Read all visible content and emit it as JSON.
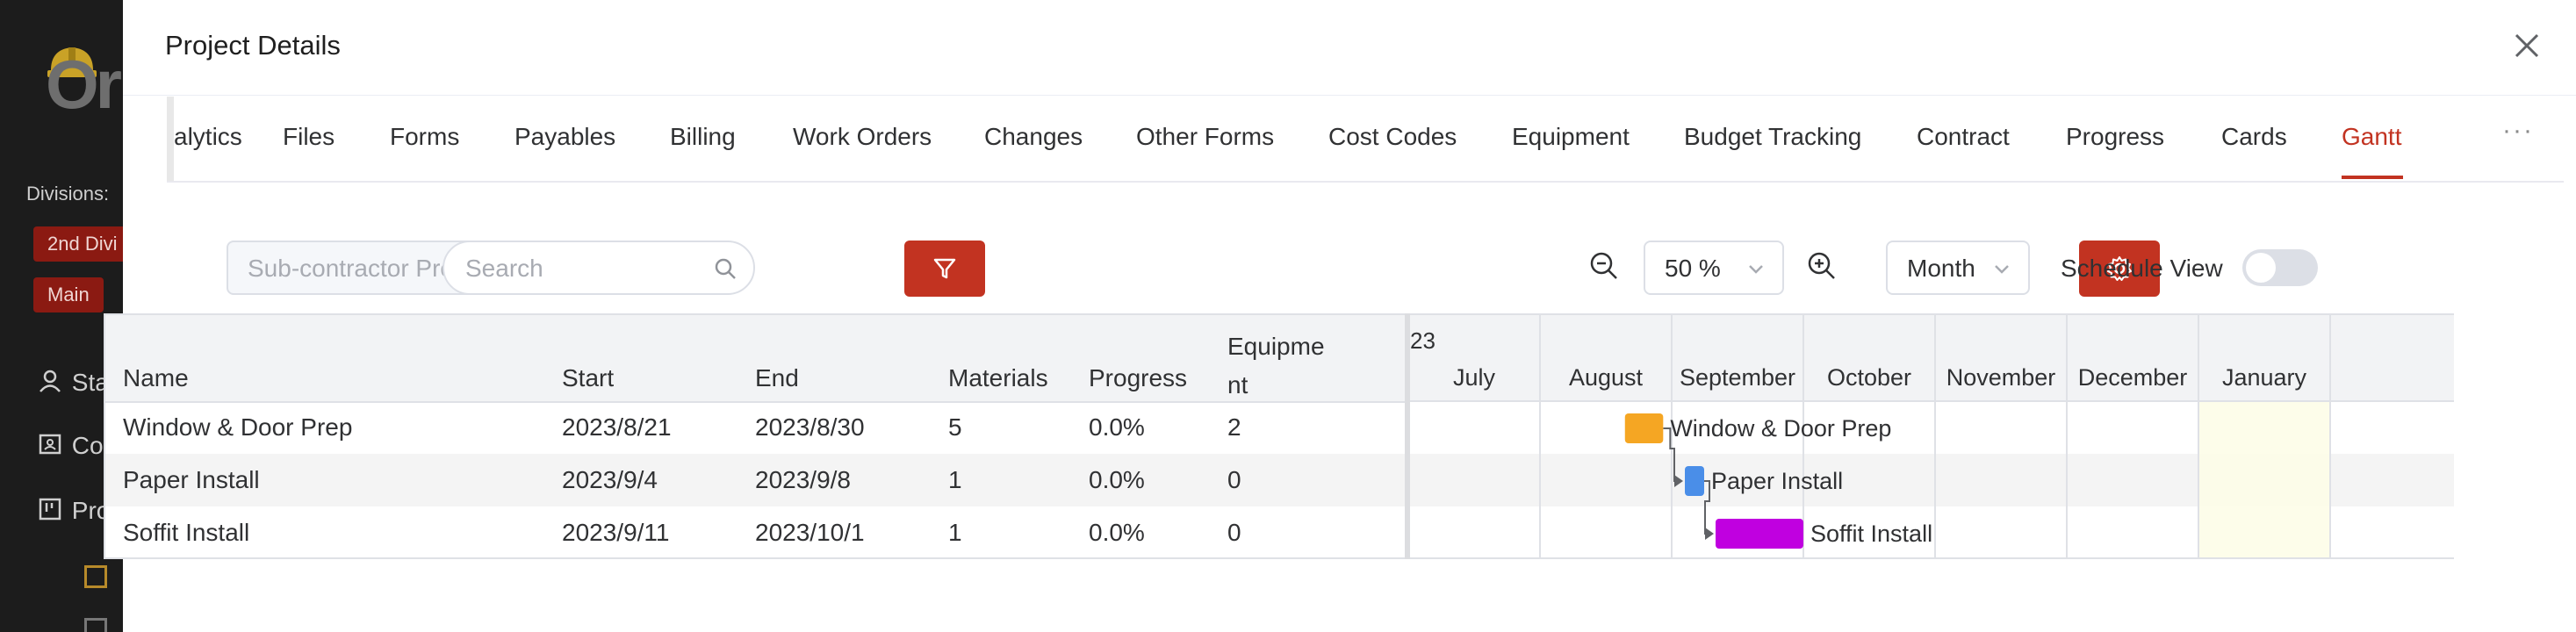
{
  "app": {
    "logo_text": "Or",
    "divisions_label": "Divisions:",
    "division_tags": [
      "2nd Divi",
      "Main"
    ],
    "nav": [
      "Stat",
      "Con",
      "Proj"
    ]
  },
  "drawer": {
    "title": "Project Details",
    "tabs": [
      "alytics",
      "Files",
      "Forms",
      "Payables",
      "Billing",
      "Work Orders",
      "Changes",
      "Other Forms",
      "Cost Codes",
      "Equipment",
      "Budget Tracking",
      "Contract",
      "Progress",
      "Cards",
      "Gantt"
    ],
    "active_tab": "Gantt",
    "more": "···"
  },
  "toolbar": {
    "subcontractor_select": "Sub-contractor Proje...",
    "search_placeholder": "Search",
    "zoom_value": "50 %",
    "scale_value": "Month",
    "schedule_view_label": "Schedule View",
    "schedule_view_on": false
  },
  "grid": {
    "columns": [
      "Name",
      "Start",
      "End",
      "Materials",
      "Progress",
      "Equipment"
    ],
    "rows": [
      {
        "name": "Window & Door Prep",
        "start": "2023/8/21",
        "end": "2023/8/30",
        "materials": "5",
        "progress": "0.0%",
        "equipment": "2"
      },
      {
        "name": "Paper Install",
        "start": "2023/9/4",
        "end": "2023/9/8",
        "materials": "1",
        "progress": "0.0%",
        "equipment": "0"
      },
      {
        "name": "Soffit Install",
        "start": "2023/9/11",
        "end": "2023/10/1",
        "materials": "1",
        "progress": "0.0%",
        "equipment": "0"
      }
    ]
  },
  "gantt": {
    "year_label": "23",
    "months": [
      "July",
      "August",
      "September",
      "October",
      "November",
      "December",
      "January"
    ],
    "tasks": [
      {
        "label": "Window & Door Prep",
        "start": "2023-08-21",
        "end": "2023-08-30",
        "color": "#f5a623"
      },
      {
        "label": "Paper Install",
        "start": "2023-09-04",
        "end": "2023-09-08",
        "color": "#4a8ee8"
      },
      {
        "label": "Soffit Install",
        "start": "2023-09-11",
        "end": "2023-10-01",
        "color": "#c000e0"
      }
    ]
  },
  "colors": {
    "accent": "#c23321",
    "today_column": "#fdfde8"
  }
}
